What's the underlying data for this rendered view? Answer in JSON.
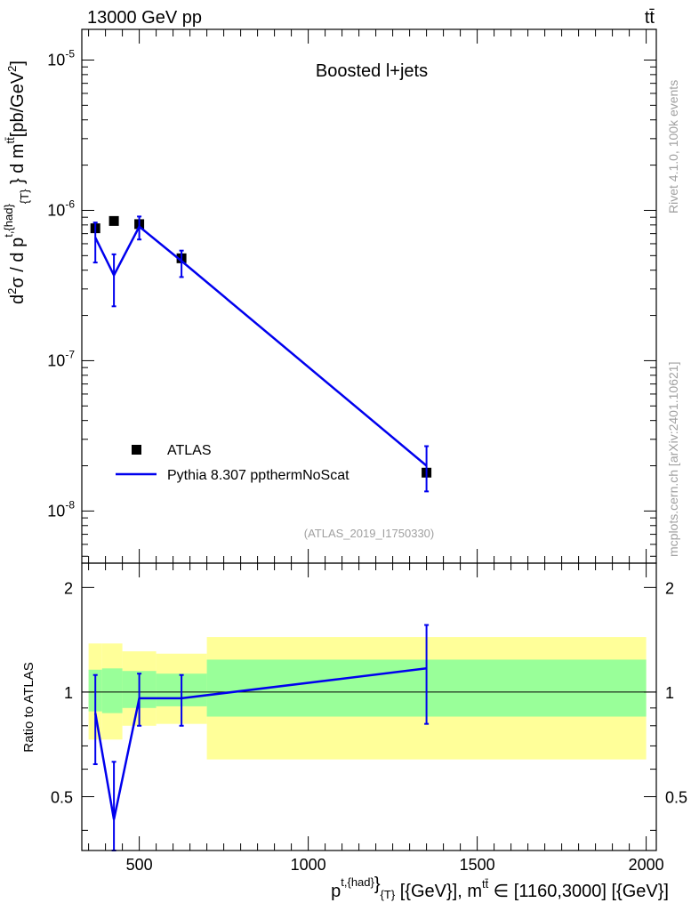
{
  "header": {
    "left": "13000 GeV pp",
    "right": "tt̄"
  },
  "side_labels": {
    "rivet": "Rivet 4.1.0,  100k events",
    "mcplots": "mcplots.cern.ch [arXiv:2401.10621]"
  },
  "chart_data": [
    {
      "type": "line",
      "title": "Boosted l+jets",
      "watermark": "(ATLAS_2019_I1750330)",
      "ylabel": "d²σ / d p_T^{t,had} d m^{tt̄} [pb/GeV²]",
      "yscale": "log",
      "ylim": [
        4.5e-09,
        1.6e-05
      ],
      "xlim": [
        330,
        2030
      ],
      "ytick_labels": [
        "10^-8",
        "10^-7",
        "10^-6",
        "10^-5"
      ],
      "legend": [
        "ATLAS",
        "Pythia 8.307 ppthermNoScat"
      ],
      "legend_position": "lower-left",
      "series": [
        {
          "name": "ATLAS",
          "marker": "square",
          "x": [
            370,
            425,
            500,
            625,
            1350
          ],
          "y": [
            7.6e-07,
            8.5e-07,
            8.1e-07,
            4.8e-07,
            1.8e-08
          ]
        },
        {
          "name": "Pythia 8.307 ppthermNoScat",
          "color": "#0000ee",
          "x": [
            370,
            425,
            500,
            625,
            1350
          ],
          "y": [
            6.6e-07,
            3.7e-07,
            7.8e-07,
            4.6e-07,
            2e-08
          ],
          "yerr_low": [
            2.1e-07,
            1.4e-07,
            1.4e-07,
            1e-07,
            6.5e-09
          ],
          "yerr_high": [
            1.7e-07,
            1.4e-07,
            1.3e-07,
            8e-08,
            7e-09
          ]
        }
      ]
    },
    {
      "type": "line",
      "ylabel": "Ratio to ATLAS",
      "xlabel": "p_T^{t,{had}} [{GeV}], m^{tt̄} ∈ [1160,3000] [{GeV}]",
      "xlim": [
        330,
        2030
      ],
      "ylim": [
        0.35,
        2.35
      ],
      "yscale": "log",
      "ytick_labels": [
        "0.5",
        "1",
        "2"
      ],
      "xtick_labels": [
        "500",
        "1000",
        "1500",
        "2000"
      ],
      "bands": [
        {
          "x0": 350,
          "x1": 390,
          "inner": [
            0.88,
            1.16
          ],
          "outer": [
            0.73,
            1.38
          ]
        },
        {
          "x0": 390,
          "x1": 450,
          "inner": [
            0.87,
            1.17
          ],
          "outer": [
            0.73,
            1.38
          ]
        },
        {
          "x0": 450,
          "x1": 550,
          "inner": [
            0.9,
            1.15
          ],
          "outer": [
            0.8,
            1.31
          ]
        },
        {
          "x0": 550,
          "x1": 700,
          "inner": [
            0.91,
            1.13
          ],
          "outer": [
            0.81,
            1.29
          ]
        },
        {
          "x0": 700,
          "x1": 2000,
          "inner": [
            0.85,
            1.24
          ],
          "outer": [
            0.64,
            1.44
          ]
        }
      ],
      "series": [
        {
          "name": "Pythia 8.307 ppthermNoScat",
          "color": "#0000ee",
          "x": [
            370,
            425,
            500,
            625,
            1350
          ],
          "y": [
            0.87,
            0.43,
            0.96,
            0.96,
            1.17
          ],
          "yerr_low": [
            0.25,
            0.08,
            0.16,
            0.16,
            0.36
          ],
          "yerr_high": [
            0.25,
            0.2,
            0.17,
            0.16,
            0.39
          ]
        }
      ]
    }
  ]
}
